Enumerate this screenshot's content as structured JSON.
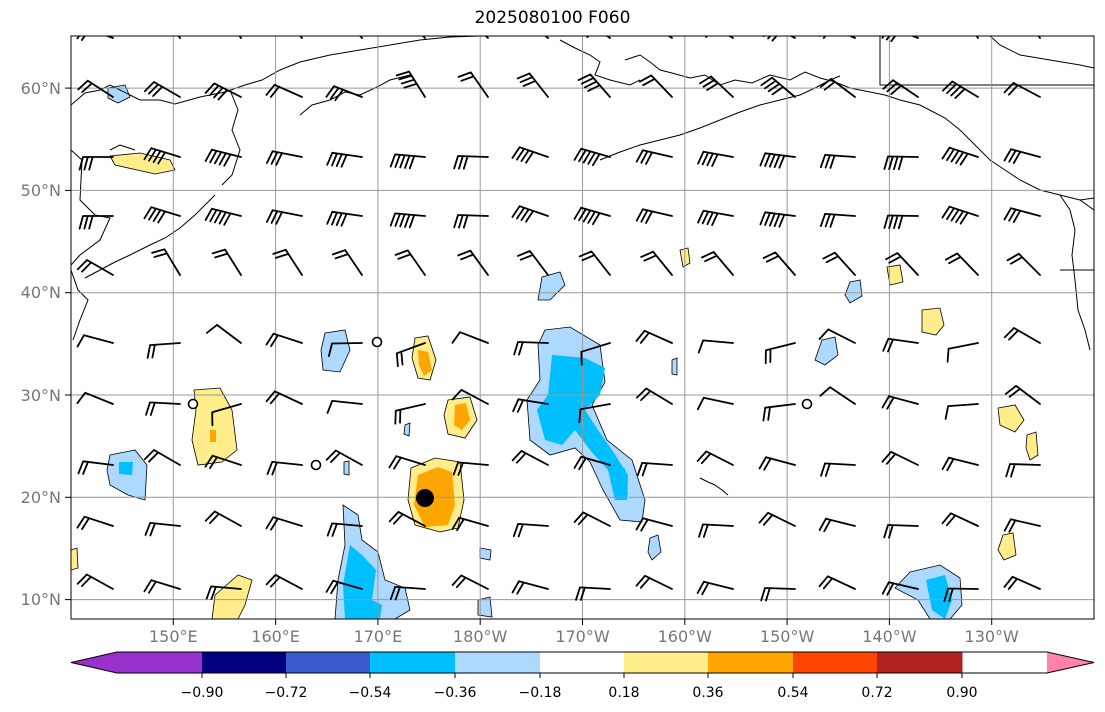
{
  "title": "2025080100 F060",
  "lat_labels": [
    "60°N",
    "50°N",
    "40°N",
    "30°N",
    "20°N",
    "10°N"
  ],
  "lon_labels": [
    "150°E",
    "160°E",
    "170°E",
    "180°W",
    "170°W",
    "160°W",
    "150°W",
    "140°W",
    "130°W"
  ],
  "colorbar": {
    "tick_labels": [
      "−0.90",
      "−0.72",
      "−0.54",
      "−0.36",
      "−0.18",
      "0.18",
      "0.36",
      "0.54",
      "0.72",
      "0.90"
    ],
    "colors": [
      "#9932cc",
      "#000080",
      "#3a5bcd",
      "#00bfff",
      "#add8ff",
      "#ffffff",
      "#ffec8b",
      "#ffa500",
      "#ff4500",
      "#b22222",
      "#ff82ab"
    ]
  },
  "colors": {
    "grid": "#999999",
    "coast": "#000000",
    "tick_label": "#777777"
  },
  "map": {
    "lon_range": [
      140,
      240
    ],
    "lat_range": [
      8,
      65
    ],
    "grid_step": 10
  }
}
